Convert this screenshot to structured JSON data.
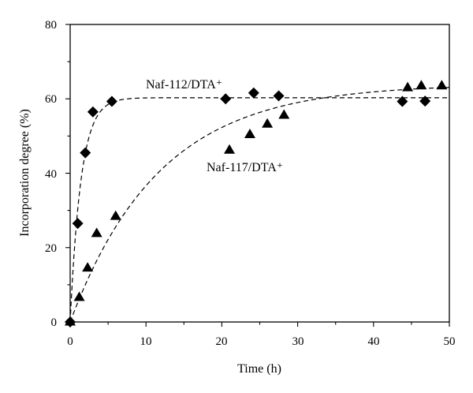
{
  "chart_data": {
    "type": "scatter",
    "xlabel": "Time (h)",
    "ylabel": "Incorporation degree (%)",
    "xlim": [
      0,
      50
    ],
    "ylim": [
      0,
      80
    ],
    "xticks": [
      "0",
      "10",
      "20",
      "30",
      "40",
      "50"
    ],
    "yticks": [
      "0",
      "20",
      "40",
      "60",
      "80"
    ],
    "grid": false,
    "legend": "none",
    "series": [
      {
        "name": "Naf-112/DTA⁺",
        "marker": "diamond",
        "x": [
          0,
          1,
          2,
          3,
          5.5,
          20.5,
          24.2,
          27.5,
          43.8,
          46.8
        ],
        "y": [
          0,
          26.5,
          45.5,
          56.5,
          59.3,
          60,
          61.6,
          60.8,
          59.3,
          59.4
        ],
        "fit_curve": {
          "plateau": 60.3,
          "rate": 0.7
        }
      },
      {
        "name": "Naf-117/DTA⁺",
        "marker": "triangle",
        "x": [
          0,
          1.2,
          2.3,
          3.5,
          6,
          21,
          23.7,
          26,
          28.2,
          44.5,
          46.3,
          49
        ],
        "y": [
          0,
          6.6,
          14.5,
          23.8,
          28.4,
          46.2,
          50.4,
          53.2,
          55.6,
          63,
          63.5,
          63.5
        ],
        "fit_curve": {
          "plateau": 64,
          "rate": 0.085
        }
      }
    ],
    "annotations": [
      "Naf-112/DTA⁺",
      "Naf-117/DTA⁺"
    ]
  }
}
